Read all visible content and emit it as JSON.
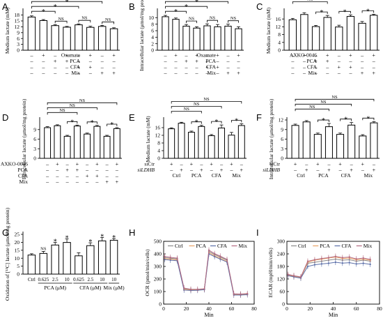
{
  "panels": [
    {
      "letter": "A",
      "chart_data": {
        "type": "bar",
        "ylabel": "Medium lactate (mM)",
        "ylim": [
          0,
          20
        ],
        "yticks": [
          0,
          3,
          6,
          9,
          12,
          15,
          18
        ],
        "values": [
          17.0,
          15.2,
          12.6,
          11.8,
          13.0,
          11.7,
          12.2,
          11.0
        ],
        "errors": [
          0.6,
          0.5,
          0.5,
          0.4,
          0.5,
          0.6,
          0.5,
          0.5
        ],
        "rows": [
          {
            "label": "Oxamate",
            "signs": [
              "-",
              "+",
              "-",
              "+",
              "-",
              "+",
              "-",
              "+"
            ]
          },
          {
            "label": "PCA",
            "signs": [
              "-",
              "-",
              "+",
              "+",
              "-",
              "-",
              "-",
              "-"
            ]
          },
          {
            "label": "CFA",
            "signs": [
              "-",
              "-",
              "-",
              "-",
              "+",
              "+",
              "-",
              "-"
            ]
          },
          {
            "label": "Mix",
            "signs": [
              "-",
              "-",
              "-",
              "-",
              "-",
              "-",
              "+",
              "+"
            ]
          }
        ],
        "brackets": [
          {
            "from": 0,
            "to": 2,
            "label": "*"
          },
          {
            "from": 0,
            "to": 4,
            "label": "*"
          },
          {
            "from": 0,
            "to": 6,
            "label": "*"
          },
          {
            "from": 2,
            "to": 3,
            "label": "NS"
          },
          {
            "from": 4,
            "to": 5,
            "label": "NS"
          },
          {
            "from": 6,
            "to": 7,
            "label": "NS"
          }
        ]
      }
    },
    {
      "letter": "B",
      "chart_data": {
        "type": "bar",
        "ylabel": "Intracellular lactate (μmol/mg protein)",
        "ylim": [
          0,
          12
        ],
        "yticks": [
          0,
          2,
          4,
          6,
          8,
          10
        ],
        "values": [
          10.3,
          9.5,
          7.4,
          6.8,
          7.5,
          7.2,
          7.4,
          6.6
        ],
        "errors": [
          0.4,
          0.4,
          0.5,
          0.4,
          0.6,
          0.7,
          0.6,
          0.6
        ],
        "rows": [
          {
            "label": "Oxamate",
            "signs": [
              "-",
              "+",
              "-",
              "+",
              "-",
              "+",
              "-",
              "+"
            ]
          },
          {
            "label": "PCA",
            "signs": [
              "-",
              "-",
              "+",
              "+",
              "-",
              "-",
              "-",
              "-"
            ]
          },
          {
            "label": "CFA",
            "signs": [
              "-",
              "-",
              "-",
              "-",
              "+",
              "+",
              "-",
              "-"
            ]
          },
          {
            "label": "Mix",
            "signs": [
              "-",
              "-",
              "-",
              "-",
              "-",
              "-",
              "+",
              "+"
            ]
          }
        ],
        "brackets": [
          {
            "from": 0,
            "to": 2,
            "label": "*"
          },
          {
            "from": 0,
            "to": 4,
            "label": "*"
          },
          {
            "from": 0,
            "to": 6,
            "label": "*"
          },
          {
            "from": 2,
            "to": 3,
            "label": "NS"
          },
          {
            "from": 4,
            "to": 5,
            "label": "NS"
          },
          {
            "from": 6,
            "to": 7,
            "label": "NS"
          }
        ]
      }
    },
    {
      "letter": "C",
      "chart_data": {
        "type": "bar",
        "ylabel": "Medium lactate (mM)",
        "ylim": [
          0,
          20
        ],
        "yticks": [
          0,
          4,
          8,
          12,
          16
        ],
        "values": [
          15.6,
          18.3,
          12.1,
          16.8,
          11.9,
          17.3,
          13.8,
          17.9
        ],
        "errors": [
          0.7,
          0.9,
          0.6,
          1.0,
          0.9,
          0.8,
          0.9,
          0.5
        ],
        "rows": [
          {
            "label": "AXKO-0046",
            "signs": [
              "-",
              "+",
              "-",
              "+",
              "-",
              "+",
              "-",
              "+"
            ]
          },
          {
            "label": "PCA",
            "signs": [
              "-",
              "-",
              "+",
              "+",
              "-",
              "-",
              "-",
              "-"
            ]
          },
          {
            "label": "CFA",
            "signs": [
              "-",
              "-",
              "-",
              "-",
              "+",
              "+",
              "-",
              "-"
            ]
          },
          {
            "label": "Mix",
            "signs": [
              "-",
              "-",
              "-",
              "-",
              "-",
              "-",
              "+",
              "+"
            ]
          }
        ],
        "brackets": [
          {
            "from": 0,
            "to": 3,
            "label": "NS"
          },
          {
            "from": 0,
            "to": 5,
            "label": "NS"
          },
          {
            "from": 0,
            "to": 7,
            "label": "NS"
          },
          {
            "from": 2,
            "to": 3,
            "label": "*"
          },
          {
            "from": 4,
            "to": 5,
            "label": "*"
          },
          {
            "from": 6,
            "to": 7,
            "label": "*"
          }
        ]
      }
    },
    {
      "letter": "D",
      "chart_data": {
        "type": "bar",
        "ylabel": "Intracellular lactate (μmol/mg protein)",
        "ylim": [
          0,
          12
        ],
        "yticks": [
          0,
          3,
          6,
          9
        ],
        "values": [
          9.6,
          10.2,
          6.9,
          10.1,
          7.6,
          10.0,
          6.9,
          9.3
        ],
        "errors": [
          0.3,
          0.3,
          0.3,
          0.3,
          0.3,
          0.3,
          0.3,
          0.3
        ],
        "rows": [
          {
            "label": "AXKO-0046",
            "signs": [
              "-",
              "+",
              "-",
              "+",
              "-",
              "+",
              "-",
              "+"
            ]
          },
          {
            "label": "PCA",
            "signs": [
              "-",
              "-",
              "+",
              "+",
              "-",
              "-",
              "-",
              "-"
            ]
          },
          {
            "label": "CFA",
            "signs": [
              "-",
              "-",
              "-",
              "-",
              "+",
              "+",
              "-",
              "-"
            ]
          },
          {
            "label": "Mix",
            "signs": [
              "-",
              "-",
              "-",
              "-",
              "-",
              "-",
              "+",
              "+"
            ]
          }
        ],
        "brackets": [
          {
            "from": 0,
            "to": 3,
            "label": "NS"
          },
          {
            "from": 0,
            "to": 5,
            "label": "NS"
          },
          {
            "from": 0,
            "to": 7,
            "label": "NS"
          },
          {
            "from": 2,
            "to": 3,
            "label": "*"
          },
          {
            "from": 4,
            "to": 5,
            "label": "*"
          },
          {
            "from": 6,
            "to": 7,
            "label": "*"
          }
        ]
      }
    },
    {
      "letter": "E",
      "chart_data": {
        "type": "bar",
        "ylabel": "Medium lactate (mM)",
        "ylim": [
          0,
          20
        ],
        "yticks": [
          0,
          4,
          8,
          12,
          16
        ],
        "values": [
          15.4,
          18.3,
          13.6,
          16.6,
          11.8,
          15.8,
          12.1,
          17.1
        ],
        "errors": [
          0.5,
          0.5,
          0.6,
          0.6,
          0.6,
          1.6,
          1.4,
          0.9
        ],
        "rows": [
          {
            "label": "siCtr",
            "signs": [
              "+",
              "-",
              "+",
              "-",
              "+",
              "-",
              "+",
              "-"
            ]
          },
          {
            "label": "siLDHB",
            "signs": [
              "-",
              "+",
              "-",
              "+",
              "-",
              "+",
              "-",
              "+"
            ]
          }
        ],
        "groups": [
          "Ctrl",
          "PCA",
          "CFA",
          "Mix"
        ],
        "brackets": [
          {
            "from": 0,
            "to": 3,
            "label": "NS"
          },
          {
            "from": 0,
            "to": 5,
            "label": "NS"
          },
          {
            "from": 0,
            "to": 7,
            "label": "NS"
          },
          {
            "from": 2,
            "to": 3,
            "label": "*"
          },
          {
            "from": 4,
            "to": 5,
            "label": "*"
          },
          {
            "from": 6,
            "to": 7,
            "label": "*"
          }
        ]
      }
    },
    {
      "letter": "F",
      "chart_data": {
        "type": "bar",
        "ylabel": "Intracellular lactate (μmol/mg protein)",
        "ylim": [
          0,
          12
        ],
        "yticks": [
          0,
          3,
          6,
          9,
          12
        ],
        "values": [
          10.3,
          11.4,
          7.5,
          9.9,
          7.5,
          10.4,
          7.0,
          11.1
        ],
        "errors": [
          0.4,
          0.4,
          0.4,
          1.0,
          0.4,
          0.8,
          0.4,
          0.4
        ],
        "rows": [
          {
            "label": "siCtr",
            "signs": [
              "+",
              "-",
              "+",
              "-",
              "+",
              "-",
              "+",
              "-"
            ]
          },
          {
            "label": "siLDHB",
            "signs": [
              "-",
              "+",
              "-",
              "+",
              "-",
              "+",
              "-",
              "+"
            ]
          }
        ],
        "groups": [
          "Ctrl",
          "PCA",
          "CFA",
          "Mix"
        ],
        "brackets": [
          {
            "from": 0,
            "to": 3,
            "label": "NS"
          },
          {
            "from": 0,
            "to": 5,
            "label": "NS"
          },
          {
            "from": 0,
            "to": 7,
            "label": "NS"
          },
          {
            "from": 2,
            "to": 3,
            "label": "*"
          },
          {
            "from": 4,
            "to": 5,
            "label": "*"
          },
          {
            "from": 6,
            "to": 7,
            "label": "*"
          }
        ]
      }
    },
    {
      "letter": "G",
      "chart_data": {
        "type": "bar",
        "ylabel": "Oxidation of [¹³C] lactate (μmol/mg protein)",
        "ylim": [
          0,
          25
        ],
        "yticks": [
          0,
          5,
          10,
          15,
          20,
          25
        ],
        "categories": [
          "Ctrl",
          "0.625",
          "2.5",
          "10",
          "0.625",
          "2.5",
          "10",
          "10"
        ],
        "values": [
          12.0,
          13.0,
          18.3,
          19.9,
          11.5,
          17.9,
          20.9,
          21.3
        ],
        "errors": [
          0.8,
          1.3,
          1.6,
          2.2,
          1.9,
          1.8,
          2.1,
          1.1
        ],
        "labels": [
          "",
          "NS",
          "*",
          "*",
          "",
          "*",
          "*",
          "*"
        ],
        "group_labels": [
          {
            "text": "PCA (μM)",
            "from": 1,
            "to": 3
          },
          {
            "text": "CFA (μM)",
            "from": 4,
            "to": 6
          },
          {
            "text": "Mix (μM)",
            "from": 7,
            "to": 7
          }
        ]
      }
    },
    {
      "letter": "H",
      "chart_data": {
        "type": "line",
        "ylabel": "OCR (pmol/min/cells)",
        "xlabel": "Min",
        "xlim": [
          0,
          80
        ],
        "ylim": [
          0,
          500
        ],
        "xticks": [
          0,
          20,
          40,
          60,
          80
        ],
        "yticks": [
          0,
          100,
          200,
          300,
          400,
          500
        ],
        "legend": "top",
        "x": [
          1,
          6,
          12,
          18,
          24,
          30,
          36,
          40,
          45,
          50,
          56,
          62,
          68,
          74
        ],
        "series": [
          {
            "name": "Ctrl",
            "color": "#8a8a8a",
            "values": [
              370,
              365,
              360,
              125,
              115,
              115,
              120,
              420,
              395,
              375,
              350,
              80,
              78,
              80
            ]
          },
          {
            "name": "PCA",
            "color": "#e8a064",
            "values": [
              362,
              358,
              352,
              118,
              112,
              112,
              118,
              410,
              385,
              365,
              340,
              76,
              75,
              78
            ]
          },
          {
            "name": "CFA",
            "color": "#5a6ea8",
            "values": [
              355,
              350,
              345,
              112,
              108,
              110,
              115,
              400,
              378,
              358,
              335,
              72,
              72,
              75
            ]
          },
          {
            "name": "Mix",
            "color": "#b46a82",
            "values": [
              380,
              372,
              366,
              128,
              118,
              118,
              122,
              430,
              402,
              382,
              356,
              82,
              80,
              84
            ]
          }
        ]
      }
    },
    {
      "letter": "I",
      "chart_data": {
        "type": "line",
        "ylabel": "ECAR (mpH/min/cells)",
        "xlabel": "Min",
        "xlim": [
          0,
          80
        ],
        "ylim": [
          0,
          300
        ],
        "xticks": [
          0,
          20,
          40,
          60,
          80
        ],
        "yticks": [
          0,
          60,
          120,
          180,
          240,
          300
        ],
        "legend": "top",
        "x": [
          1,
          6,
          12,
          18,
          24,
          30,
          36,
          42,
          48,
          54,
          60,
          66,
          72
        ],
        "series": [
          {
            "name": "Ctrl",
            "color": "#8a8a8a",
            "values": [
              140,
              135,
              128,
              195,
              200,
              205,
              210,
              215,
              210,
              212,
              205,
              210,
              205
            ]
          },
          {
            "name": "PCA",
            "color": "#e8a064",
            "values": [
              138,
              132,
              126,
              200,
              210,
              215,
              220,
              225,
              218,
              220,
              212,
              215,
              210
            ]
          },
          {
            "name": "CFA",
            "color": "#5a6ea8",
            "values": [
              136,
              130,
              124,
              180,
              188,
              192,
              195,
              200,
              196,
              198,
              192,
              195,
              190
            ]
          },
          {
            "name": "Mix",
            "color": "#b46a82",
            "values": [
              142,
              136,
              130,
              205,
              212,
              218,
              222,
              228,
              222,
              225,
              216,
              220,
              214
            ]
          }
        ]
      }
    }
  ]
}
